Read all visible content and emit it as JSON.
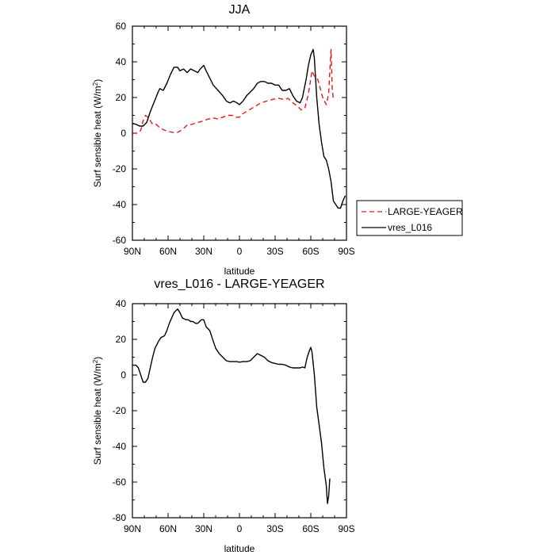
{
  "chart_data": [
    {
      "type": "line",
      "title": "JJA",
      "xlabel": "latitude",
      "ylabel": "Surf sensible heat (W/m",
      "ylabel_sup": "2",
      "ylabel_end": ")",
      "xlim": [
        90,
        -90
      ],
      "ylim": [
        -60,
        60
      ],
      "x_ticks": [
        90,
        60,
        30,
        0,
        -30,
        -60,
        -90
      ],
      "x_tick_labels": [
        "90N",
        "60N",
        "30N",
        "0",
        "30S",
        "60S",
        "90S"
      ],
      "y_ticks": [
        -60,
        -40,
        -20,
        0,
        20,
        40,
        60
      ],
      "y_tick_labels": [
        "-60",
        "-40",
        "-20",
        "0",
        "20",
        "40",
        "60"
      ],
      "legend_position": "right-outside",
      "series": [
        {
          "name": "LARGE-YEAGER",
          "color": "#e41a1c",
          "dash": "dashed",
          "points": [
            [
              90,
              0
            ],
            [
              86,
              0
            ],
            [
              83,
              1.5
            ],
            [
              81,
              7
            ],
            [
              79,
              10
            ],
            [
              77,
              9
            ],
            [
              75,
              7
            ],
            [
              73,
              5
            ],
            [
              70,
              5
            ],
            [
              67,
              3
            ],
            [
              64,
              2
            ],
            [
              60,
              1
            ],
            [
              56,
              0.5
            ],
            [
              52,
              0.5
            ],
            [
              48,
              2
            ],
            [
              44,
              4.5
            ],
            [
              40,
              5
            ],
            [
              35,
              6
            ],
            [
              30,
              7
            ],
            [
              26,
              8
            ],
            [
              22,
              8.5
            ],
            [
              18,
              8
            ],
            [
              14,
              9
            ],
            [
              10,
              10
            ],
            [
              6,
              10
            ],
            [
              3,
              9
            ],
            [
              0,
              9
            ],
            [
              -3,
              11
            ],
            [
              -8,
              13
            ],
            [
              -13,
              15
            ],
            [
              -18,
              17
            ],
            [
              -23,
              18
            ],
            [
              -28,
              19
            ],
            [
              -33,
              19.5
            ],
            [
              -37,
              19
            ],
            [
              -41,
              19.5
            ],
            [
              -45,
              17
            ],
            [
              -49,
              15
            ],
            [
              -52,
              13
            ],
            [
              -55,
              14
            ],
            [
              -58,
              22
            ],
            [
              -61,
              35
            ],
            [
              -63,
              32
            ],
            [
              -66,
              30
            ],
            [
              -70,
              20
            ],
            [
              -73,
              16
            ],
            [
              -75,
              22
            ],
            [
              -77,
              47
            ],
            [
              -78,
              25
            ],
            [
              -79,
              19
            ]
          ]
        },
        {
          "name": "vres_L016",
          "color": "#000000",
          "dash": "solid",
          "points": [
            [
              90,
              5.5
            ],
            [
              87,
              5
            ],
            [
              84,
              4
            ],
            [
              81,
              4
            ],
            [
              78,
              6
            ],
            [
              75,
              12
            ],
            [
              72,
              17
            ],
            [
              69,
              22
            ],
            [
              67,
              25
            ],
            [
              64,
              24
            ],
            [
              61,
              28
            ],
            [
              58,
              33
            ],
            [
              55,
              37
            ],
            [
              52,
              37
            ],
            [
              50,
              35
            ],
            [
              47,
              36
            ],
            [
              44,
              34
            ],
            [
              41,
              36
            ],
            [
              38,
              35
            ],
            [
              35,
              34
            ],
            [
              33,
              36
            ],
            [
              30,
              38
            ],
            [
              28,
              35
            ],
            [
              25,
              31
            ],
            [
              22,
              27
            ],
            [
              18,
              24
            ],
            [
              14,
              21
            ],
            [
              11,
              18
            ],
            [
              8,
              17
            ],
            [
              5,
              18
            ],
            [
              2,
              17
            ],
            [
              0,
              16
            ],
            [
              -3,
              18
            ],
            [
              -6,
              21
            ],
            [
              -9,
              23
            ],
            [
              -12,
              25
            ],
            [
              -15,
              28
            ],
            [
              -18,
              29
            ],
            [
              -21,
              29
            ],
            [
              -24,
              28
            ],
            [
              -27,
              28
            ],
            [
              -30,
              27
            ],
            [
              -33,
              27
            ],
            [
              -36,
              24
            ],
            [
              -39,
              24
            ],
            [
              -42,
              25
            ],
            [
              -45,
              21
            ],
            [
              -48,
              18
            ],
            [
              -51,
              17
            ],
            [
              -53,
              20
            ],
            [
              -56,
              30
            ],
            [
              -58,
              38
            ],
            [
              -60,
              44
            ],
            [
              -62,
              47
            ],
            [
              -63,
              42
            ],
            [
              -65,
              20
            ],
            [
              -67,
              5
            ],
            [
              -69,
              -5
            ],
            [
              -71,
              -13
            ],
            [
              -73,
              -15
            ],
            [
              -75,
              -20
            ],
            [
              -77,
              -27
            ],
            [
              -79,
              -38
            ],
            [
              -81,
              -40
            ],
            [
              -83,
              -42
            ],
            [
              -85,
              -42
            ],
            [
              -87,
              -38
            ],
            [
              -89,
              -35
            ]
          ]
        }
      ]
    },
    {
      "type": "line",
      "title": "vres_L016 - LARGE-YEAGER",
      "xlabel": "latitude",
      "ylabel": "Surf sensible heat (W/m",
      "ylabel_sup": "2",
      "ylabel_end": ")",
      "xlim": [
        90,
        -90
      ],
      "ylim": [
        -80,
        40
      ],
      "x_ticks": [
        90,
        60,
        30,
        0,
        -30,
        -60,
        -90
      ],
      "x_tick_labels": [
        "90N",
        "60N",
        "30N",
        "0",
        "30S",
        "60S",
        "90S"
      ],
      "y_ticks": [
        -80,
        -60,
        -40,
        -20,
        0,
        20,
        40
      ],
      "y_tick_labels": [
        "-80",
        "-60",
        "-40",
        "-20",
        "0",
        "20",
        "40"
      ],
      "series": [
        {
          "color": "#000000",
          "dash": "solid",
          "points": [
            [
              90,
              5.5
            ],
            [
              87,
              5.5
            ],
            [
              85,
              4
            ],
            [
              83,
              0
            ],
            [
              81,
              -4
            ],
            [
              79,
              -4
            ],
            [
              77,
              -2
            ],
            [
              75,
              4
            ],
            [
              73,
              10
            ],
            [
              71,
              15
            ],
            [
              68,
              19
            ],
            [
              66,
              21
            ],
            [
              63,
              22
            ],
            [
              61,
              25
            ],
            [
              59,
              29
            ],
            [
              57,
              32
            ],
            [
              55,
              35
            ],
            [
              52,
              37
            ],
            [
              50,
              35
            ],
            [
              48,
              32
            ],
            [
              45,
              31
            ],
            [
              43,
              31
            ],
            [
              41,
              30
            ],
            [
              39,
              30
            ],
            [
              37,
              29
            ],
            [
              35,
              29
            ],
            [
              32,
              31
            ],
            [
              30,
              31
            ],
            [
              28,
              27
            ],
            [
              25,
              25
            ],
            [
              22,
              19
            ],
            [
              20,
              15
            ],
            [
              17,
              12
            ],
            [
              14,
              10
            ],
            [
              11,
              8
            ],
            [
              8,
              7.5
            ],
            [
              5,
              7.5
            ],
            [
              2,
              7.5
            ],
            [
              0,
              7.2
            ],
            [
              -3,
              7.5
            ],
            [
              -6,
              7.5
            ],
            [
              -9,
              8
            ],
            [
              -12,
              10
            ],
            [
              -15,
              12
            ],
            [
              -18,
              11
            ],
            [
              -21,
              10
            ],
            [
              -24,
              8
            ],
            [
              -27,
              7
            ],
            [
              -30,
              6.5
            ],
            [
              -33,
              6
            ],
            [
              -36,
              6
            ],
            [
              -39,
              5.5
            ],
            [
              -42,
              4.5
            ],
            [
              -45,
              4
            ],
            [
              -48,
              4
            ],
            [
              -51,
              4
            ],
            [
              -53,
              4.5
            ],
            [
              -55,
              4
            ],
            [
              -57,
              10
            ],
            [
              -59,
              14
            ],
            [
              -60,
              15.5
            ],
            [
              -61,
              13
            ],
            [
              -63,
              0
            ],
            [
              -65,
              -18
            ],
            [
              -67,
              -28
            ],
            [
              -69,
              -38
            ],
            [
              -71,
              -52
            ],
            [
              -73,
              -62
            ],
            [
              -74,
              -72
            ],
            [
              -75,
              -68
            ],
            [
              -76,
              -58
            ]
          ]
        }
      ]
    }
  ]
}
